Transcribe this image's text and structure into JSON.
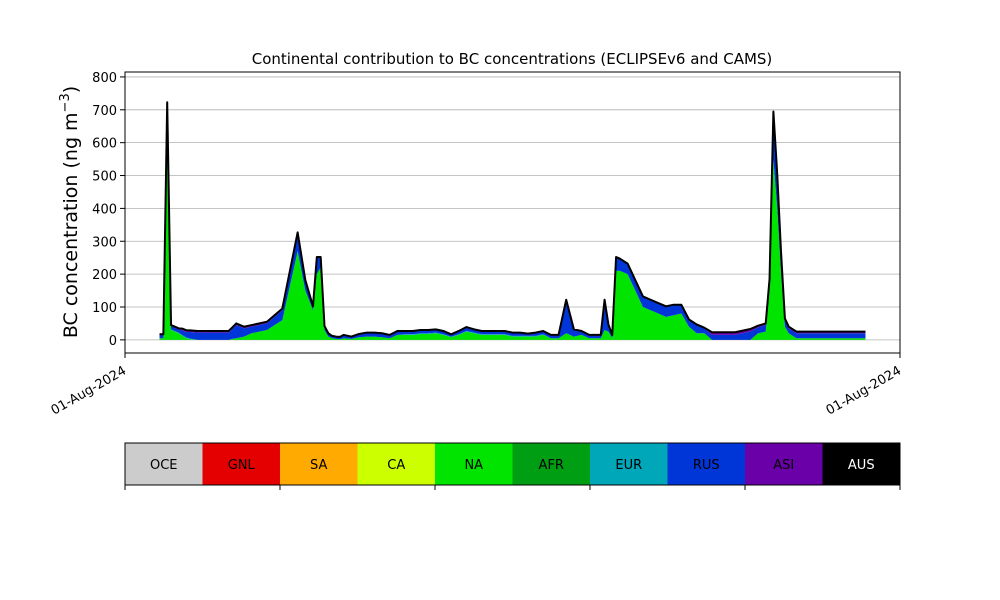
{
  "chart_data": {
    "type": "area",
    "title": "Continental contribution to BC concentrations (ECLIPSEv6 and CAMS)",
    "ylabel_main": "BC concentration (ng m",
    "ylabel_sup": "−3",
    "ylabel_close": ")",
    "ylim": [
      -40,
      815
    ],
    "yticks": [
      0,
      100,
      200,
      300,
      400,
      500,
      600,
      700,
      800
    ],
    "x_ticks": [
      "01-Aug-2024",
      "01-Aug-2024"
    ],
    "grid": "y",
    "x": [
      0,
      0.5,
      1,
      1.5,
      2,
      2.5,
      3,
      3.5,
      4,
      5,
      6,
      7,
      8,
      9,
      9.5,
      10,
      11,
      12,
      14,
      16,
      18,
      19,
      20,
      20.5,
      21,
      21.5,
      22,
      22.5,
      23,
      23.5,
      24,
      25,
      26,
      27,
      28,
      29,
      30,
      31,
      32,
      33,
      34,
      35,
      36,
      37,
      38,
      39,
      40,
      41,
      42,
      43,
      44,
      45,
      46,
      47,
      48,
      49,
      50,
      51,
      52,
      53,
      54,
      55,
      56,
      57,
      57.5,
      58,
      58.5,
      59,
      59.5,
      60,
      61,
      62,
      63,
      64,
      65,
      66,
      67,
      68,
      69,
      70,
      71,
      72,
      73,
      74,
      75,
      76,
      77,
      78,
      79,
      79.5,
      80,
      80.5,
      81,
      81.5,
      82,
      83,
      84,
      85,
      86,
      87,
      88,
      89,
      90,
      91,
      92
    ],
    "series": [
      {
        "name": "NA",
        "color": "#00e400",
        "values": [
          5,
          5,
          600,
          30,
          25,
          20,
          12,
          5,
          2,
          0,
          0,
          0,
          0,
          0,
          3,
          5,
          10,
          20,
          30,
          60,
          270,
          150,
          90,
          200,
          220,
          30,
          10,
          5,
          3,
          2,
          5,
          3,
          8,
          10,
          10,
          8,
          5,
          15,
          15,
          15,
          18,
          18,
          20,
          15,
          8,
          15,
          25,
          20,
          15,
          15,
          15,
          15,
          10,
          10,
          10,
          10,
          15,
          5,
          5,
          20,
          10,
          15,
          5,
          5,
          5,
          30,
          25,
          5,
          210,
          210,
          200,
          150,
          100,
          90,
          80,
          70,
          75,
          80,
          40,
          20,
          20,
          0,
          0,
          0,
          0,
          0,
          0,
          20,
          25,
          150,
          550,
          400,
          200,
          40,
          20,
          5,
          5,
          5,
          5,
          5,
          5,
          5,
          5,
          5,
          5
        ]
      },
      {
        "name": "EUR",
        "color": "#00a7b9",
        "values": [
          0,
          0,
          0,
          2,
          2,
          2,
          2,
          2,
          2,
          0,
          0,
          0,
          0,
          0,
          0,
          0,
          0,
          0,
          0,
          0,
          0,
          0,
          0,
          0,
          0,
          0,
          0,
          0,
          0,
          0,
          0,
          0,
          0,
          0,
          0,
          0,
          0,
          0,
          2,
          2,
          2,
          2,
          2,
          2,
          2,
          2,
          2,
          2,
          2,
          2,
          2,
          2,
          2,
          2,
          2,
          2,
          2,
          0,
          0,
          0,
          0,
          0,
          0,
          0,
          0,
          0,
          0,
          0,
          0,
          0,
          0,
          0,
          0,
          0,
          0,
          0,
          0,
          0,
          0,
          0,
          0,
          0,
          0,
          0,
          0,
          0,
          0,
          0,
          0,
          0,
          0,
          0,
          0,
          0,
          0,
          0,
          0,
          0,
          0,
          0,
          0,
          0,
          0,
          0,
          0
        ]
      },
      {
        "name": "RUS",
        "color": "#0035d8",
        "values": [
          10,
          10,
          120,
          10,
          10,
          10,
          15,
          17,
          20,
          22,
          22,
          22,
          22,
          22,
          30,
          40,
          25,
          20,
          20,
          30,
          55,
          30,
          10,
          50,
          30,
          10,
          8,
          5,
          5,
          5,
          8,
          5,
          8,
          10,
          10,
          10,
          8,
          10,
          8,
          8,
          8,
          8,
          8,
          8,
          5,
          8,
          10,
          8,
          8,
          8,
          8,
          8,
          8,
          8,
          5,
          8,
          8,
          8,
          8,
          100,
          20,
          10,
          8,
          8,
          8,
          90,
          20,
          8,
          40,
          35,
          30,
          30,
          30,
          30,
          30,
          30,
          30,
          25,
          20,
          25,
          15,
          15,
          15,
          15,
          15,
          20,
          25,
          18,
          20,
          30,
          140,
          100,
          60,
          20,
          15,
          15,
          15,
          15,
          15,
          15,
          15,
          15,
          15,
          15,
          15
        ]
      },
      {
        "name": "ASI",
        "color": "#6a00a8",
        "values": [
          2,
          2,
          3,
          3,
          3,
          3,
          5,
          5,
          5,
          5,
          5,
          5,
          5,
          5,
          5,
          5,
          5,
          5,
          5,
          5,
          2,
          2,
          2,
          2,
          2,
          2,
          2,
          2,
          2,
          2,
          2,
          2,
          2,
          2,
          2,
          2,
          2,
          2,
          2,
          2,
          2,
          2,
          2,
          2,
          2,
          2,
          2,
          2,
          2,
          2,
          2,
          2,
          2,
          2,
          2,
          2,
          2,
          2,
          2,
          2,
          2,
          2,
          2,
          2,
          2,
          2,
          2,
          2,
          2,
          2,
          2,
          2,
          2,
          2,
          2,
          2,
          2,
          2,
          2,
          2,
          2,
          8,
          8,
          8,
          8,
          8,
          8,
          5,
          5,
          5,
          5,
          5,
          5,
          5,
          5,
          5,
          5,
          5,
          5,
          5,
          5,
          5,
          5,
          5,
          5
        ]
      }
    ],
    "legend_labels": [
      "OCE",
      "GNL",
      "SA",
      "CA",
      "NA",
      "AFR",
      "EUR",
      "RUS",
      "ASI",
      "AUS"
    ],
    "legend_colors": [
      "#cccccc",
      "#e40000",
      "#ffaa00",
      "#ccff00",
      "#00e400",
      "#009e12",
      "#00a7b9",
      "#0035d8",
      "#6a00a8",
      "#000000"
    ],
    "legend_text_colors": [
      "#000000",
      "#000000",
      "#000000",
      "#000000",
      "#000000",
      "#000000",
      "#000000",
      "#000000",
      "#000000",
      "#ffffff"
    ]
  }
}
